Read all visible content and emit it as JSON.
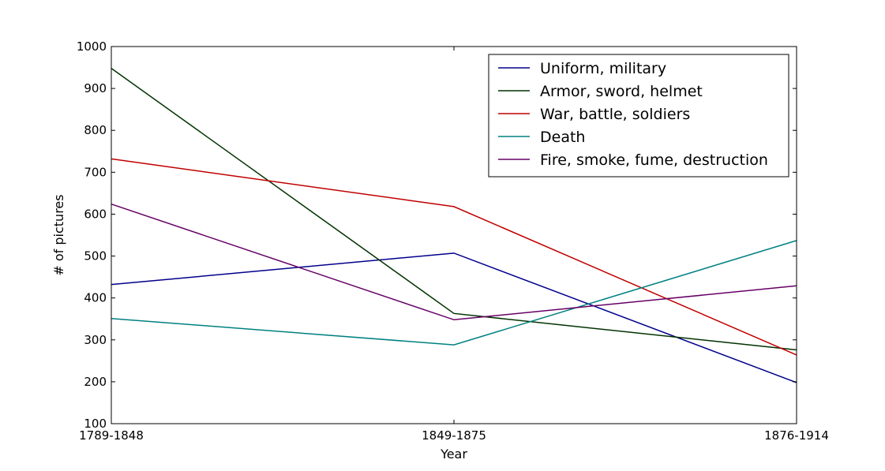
{
  "chart_data": {
    "type": "line",
    "categories": [
      "1789-1848",
      "1849-1875",
      "1876-1914"
    ],
    "xlabel": "Year",
    "ylabel": "# of pictures",
    "ylim": [
      100,
      1000
    ],
    "yticks": [
      100,
      200,
      300,
      400,
      500,
      600,
      700,
      800,
      900,
      1000
    ],
    "grid": false,
    "legend_position": "top-right",
    "series": [
      {
        "name": "Uniform, military",
        "color": "#00008b",
        "values": [
          432,
          507,
          198
        ]
      },
      {
        "name": "Armor, sword, helmet",
        "color": "#003300",
        "values": [
          948,
          363,
          276
        ]
      },
      {
        "name": "War, battle, soldiers",
        "color": "#c00000",
        "values": [
          732,
          618,
          264
        ]
      },
      {
        "name": "Death",
        "color": "#008080",
        "values": [
          351,
          288,
          537
        ]
      },
      {
        "name": "Fire, smoke, fume, destruction",
        "color": "#660066",
        "values": [
          624,
          348,
          429
        ]
      }
    ]
  }
}
